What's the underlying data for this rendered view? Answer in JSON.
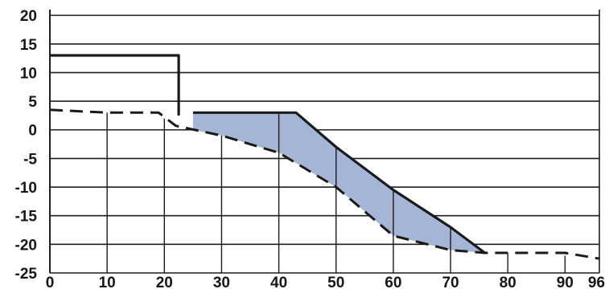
{
  "chart_data": {
    "type": "line",
    "title": "",
    "xlabel": "",
    "ylabel": "",
    "xlim": [
      0,
      96
    ],
    "ylim": [
      -25,
      21
    ],
    "grid": "horizontal",
    "x_ticks": [
      0,
      10,
      20,
      30,
      40,
      50,
      60,
      70,
      80,
      90,
      96
    ],
    "y_ticks": [
      20,
      15,
      10,
      5,
      0,
      -5,
      -10,
      -15,
      -20,
      -25
    ],
    "x_tick_labels": [
      "0",
      "10",
      "20",
      "30",
      "40",
      "50",
      "60",
      "70",
      "80",
      "90",
      "96"
    ],
    "y_tick_labels": [
      "20",
      "15",
      "10",
      "5",
      "0",
      "-5",
      "-10",
      "-15",
      "-20",
      "-25"
    ],
    "series": [
      {
        "style": "dashed",
        "points": [
          [
            0,
            3.5
          ],
          [
            10,
            3
          ],
          [
            19,
            3
          ],
          [
            22,
            0.7
          ],
          [
            30,
            -1
          ],
          [
            40,
            -4
          ],
          [
            50,
            -10
          ],
          [
            60,
            -18.5
          ],
          [
            70,
            -21
          ],
          [
            76,
            -21.5
          ],
          [
            80,
            -21.5
          ],
          [
            90,
            -21.5
          ],
          [
            96,
            -22.5
          ]
        ]
      },
      {
        "style": "solid",
        "points": [
          [
            0,
            13
          ],
          [
            22.5,
            13
          ],
          [
            22.5,
            2.5
          ]
        ]
      },
      {
        "style": "solid",
        "points": [
          [
            25,
            3
          ],
          [
            43,
            3
          ],
          [
            50,
            -3
          ],
          [
            60,
            -10.5
          ],
          [
            70,
            -17
          ],
          [
            76,
            -21.5
          ]
        ]
      }
    ],
    "shaded_region": {
      "fill": "#a4b5d6",
      "points": [
        [
          25,
          3
        ],
        [
          43,
          3
        ],
        [
          50,
          -3
        ],
        [
          60,
          -10.5
        ],
        [
          70,
          -17
        ],
        [
          76,
          -21.5
        ],
        [
          70,
          -21
        ],
        [
          60,
          -18.5
        ],
        [
          50,
          -10
        ],
        [
          40,
          -4
        ],
        [
          30,
          -1
        ],
        [
          25,
          0
        ]
      ]
    },
    "verticals": [
      {
        "x": 10,
        "y_top": 3
      },
      {
        "x": 20,
        "y_top": 2
      },
      {
        "x": 30,
        "y_top": -1
      },
      {
        "x": 40,
        "y_top": 3
      },
      {
        "x": 50,
        "y_top": -3
      },
      {
        "x": 60,
        "y_top": -10.5
      },
      {
        "x": 70,
        "y_top": -17
      },
      {
        "x": 80,
        "y_top": -21.5
      },
      {
        "x": 90,
        "y_top": -22
      }
    ],
    "colors": {
      "line": "#1a1a1a",
      "grid": "#1e1e1e",
      "shade": "#a4b5d6"
    }
  }
}
